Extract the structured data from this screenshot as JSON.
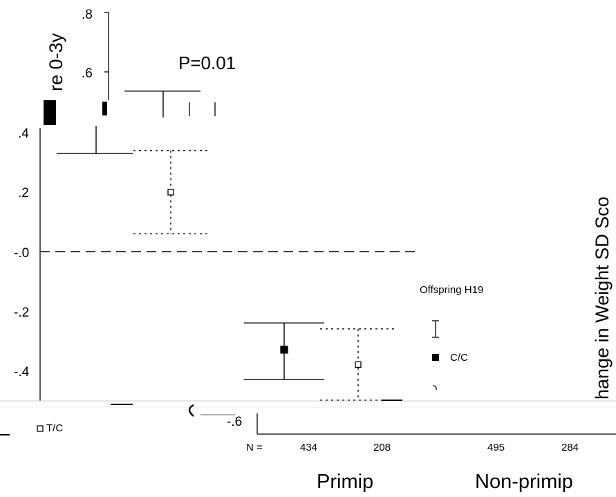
{
  "chart_data": {
    "type": "scatter",
    "title": "",
    "ylabel": "Change in Weight SD Score 0-3y",
    "ylim": [
      -0.6,
      0.8
    ],
    "y_ticks": [
      ".8",
      ".6",
      ".4",
      ".2",
      "-.0",
      "-.2",
      "-.4",
      "-.6"
    ],
    "annotation": "P=0.01",
    "n_label": "N =",
    "groups": [
      "Primip",
      "Non-primip"
    ],
    "categories": [
      "434",
      "208",
      "495",
      "284"
    ],
    "legend": {
      "title": "Offspring H19",
      "items": [
        "C/C",
        "T/C"
      ]
    },
    "series": [
      {
        "name": "C/C",
        "style": "solid-square",
        "points": [
          {
            "category": "434",
            "mean": -0.33,
            "lower": -0.43,
            "upper": -0.24
          },
          {
            "category": "495",
            "mean": 0.43,
            "lower": 0.33,
            "upper": 0.54
          }
        ]
      },
      {
        "name": "T/C",
        "style": "open-square-dotted",
        "points": [
          {
            "category": "208",
            "mean": -0.38,
            "lower": -0.5,
            "upper": -0.26
          },
          {
            "category": "284",
            "mean": 0.2,
            "lower": 0.06,
            "upper": 0.34
          }
        ]
      }
    ],
    "reference_line": 0
  }
}
